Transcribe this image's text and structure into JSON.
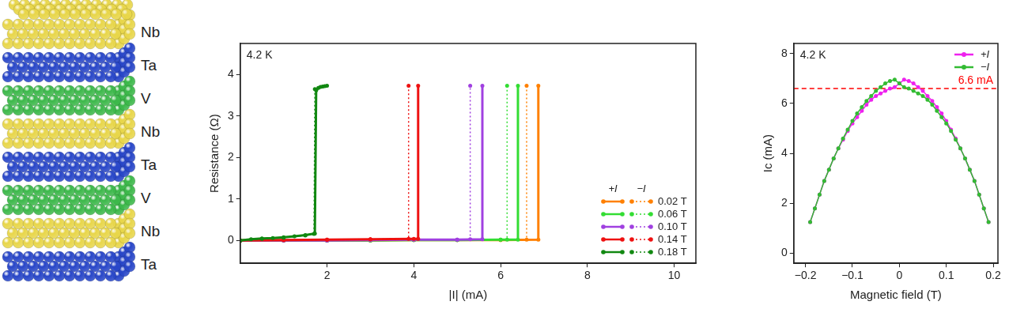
{
  "diagram": {
    "layers": [
      "Nb",
      "Ta",
      "V",
      "Nb",
      "Ta",
      "V",
      "Nb",
      "Ta"
    ],
    "colors": {
      "Nb": "#e8d64a",
      "Ta": "#2846c8",
      "V": "#3cb84a"
    }
  },
  "chart_data": [
    {
      "type": "line",
      "note": "4.2 K",
      "x_label": "|I| (mA)",
      "y_label": "Resistance (Ω)",
      "xlim": [
        0,
        10.5
      ],
      "xticks": [
        2,
        4,
        6,
        8,
        10
      ],
      "ylim": [
        -0.55,
        4.75
      ],
      "yticks": [
        0,
        1,
        2,
        3,
        4
      ],
      "grid": false,
      "legend": "lower right",
      "marker": "circle",
      "series": [
        {
          "name": "0.02 T",
          "group": "+I",
          "color": "#ff8000",
          "line_style": "solid",
          "x": [
            0,
            1,
            2,
            3,
            4,
            5,
            6,
            6.87,
            6.87
          ],
          "values": [
            0,
            0,
            0,
            0,
            0.01,
            0.01,
            0.01,
            0.02,
            3.73
          ]
        },
        {
          "name": "0.02 T",
          "group": "−I",
          "color": "#ff8000",
          "line_style": "dotted",
          "x": [
            0,
            1,
            2,
            3,
            4,
            5,
            6,
            6.6,
            6.6
          ],
          "values": [
            0,
            0,
            0,
            0,
            0.01,
            0.01,
            0.01,
            0.02,
            3.73
          ]
        },
        {
          "name": "0.06 T",
          "group": "+I",
          "color": "#33dd33",
          "line_style": "solid",
          "x": [
            0,
            1,
            2,
            3,
            4,
            5,
            6,
            6.4,
            6.4
          ],
          "values": [
            0,
            0,
            0,
            0,
            0.01,
            0.01,
            0.02,
            0.02,
            3.73
          ]
        },
        {
          "name": "0.06 T",
          "group": "−I",
          "color": "#33dd33",
          "line_style": "dotted",
          "x": [
            0,
            1,
            2,
            3,
            4,
            5,
            6,
            6.15,
            6.15
          ],
          "values": [
            0,
            0,
            0,
            0,
            0.01,
            0.01,
            0.02,
            0.02,
            3.73
          ]
        },
        {
          "name": "0.10 T",
          "group": "+I",
          "color": "#a040e0",
          "line_style": "solid",
          "x": [
            0,
            1,
            2,
            3,
            4,
            5,
            5.58,
            5.58
          ],
          "values": [
            0,
            0,
            0,
            0.01,
            0.02,
            0.02,
            0.03,
            3.73
          ]
        },
        {
          "name": "0.10 T",
          "group": "−I",
          "color": "#a040e0",
          "line_style": "dotted",
          "x": [
            0,
            1,
            2,
            3,
            4,
            5,
            5.3,
            5.3
          ],
          "values": [
            0,
            0,
            0,
            0.01,
            0.02,
            0.02,
            0.03,
            3.73
          ]
        },
        {
          "name": "0.14 T",
          "group": "+I",
          "color": "#ee1111",
          "line_style": "solid",
          "x": [
            0,
            1,
            2,
            3,
            4,
            4.1,
            4.1
          ],
          "values": [
            0,
            0.01,
            0.02,
            0.03,
            0.04,
            0.04,
            3.73
          ]
        },
        {
          "name": "0.14 T",
          "group": "−I",
          "color": "#ee1111",
          "line_style": "dotted",
          "x": [
            0,
            1,
            2,
            3,
            3.88,
            3.88
          ],
          "values": [
            0,
            0.01,
            0.02,
            0.03,
            0.04,
            3.73
          ]
        },
        {
          "name": "0.18 T",
          "group": "+I",
          "color": "#118811",
          "line_style": "solid",
          "x": [
            0,
            0.25,
            0.5,
            0.75,
            1,
            1.25,
            1.5,
            1.72,
            1.75,
            1.8,
            1.85,
            1.9,
            1.95,
            2.0
          ],
          "values": [
            0,
            0.03,
            0.05,
            0.06,
            0.08,
            0.1,
            0.13,
            0.17,
            3.62,
            3.68,
            3.7,
            3.71,
            3.72,
            3.73
          ]
        },
        {
          "name": "0.18 T",
          "group": "−I",
          "color": "#118811",
          "line_style": "dotted",
          "x": [
            0,
            0.5,
            1,
            1.5,
            1.7,
            1.72
          ],
          "values": [
            0,
            0.04,
            0.07,
            0.12,
            0.16,
            3.65
          ]
        }
      ]
    },
    {
      "type": "line",
      "note": "4.2 K",
      "x_label": "Magnetic field (T)",
      "y_label": "Ic (mA)",
      "xlim": [
        -0.225,
        0.21
      ],
      "xticks": [
        {
          "value": -0.2,
          "label": "−0.2"
        },
        {
          "value": -0.1,
          "label": "−0.1"
        },
        0,
        0.1,
        0.2
      ],
      "ylim": [
        -0.4,
        8.4
      ],
      "yticks": [
        0,
        2,
        4,
        6,
        8
      ],
      "grid": false,
      "legend": "upper right",
      "marker": "circle",
      "reference_line": {
        "value": 6.6,
        "label": "6.6 mA",
        "color": "#ff0000",
        "line_style": "dashed"
      },
      "series": [
        {
          "name": "+I",
          "color": "#ee22ee",
          "line_style": "solid",
          "x": [
            -0.19,
            -0.18,
            -0.17,
            -0.16,
            -0.15,
            -0.14,
            -0.13,
            -0.12,
            -0.11,
            -0.1,
            -0.09,
            -0.08,
            -0.07,
            -0.06,
            -0.05,
            -0.04,
            -0.03,
            -0.02,
            -0.01,
            0,
            0.01,
            0.02,
            0.03,
            0.04,
            0.05,
            0.06,
            0.07,
            0.08,
            0.09,
            0.1,
            0.11,
            0.12,
            0.13,
            0.14,
            0.15,
            0.16,
            0.17,
            0.18,
            0.19
          ],
          "values": [
            1.25,
            1.8,
            2.35,
            2.9,
            3.35,
            3.8,
            4.2,
            4.55,
            4.9,
            5.2,
            5.45,
            5.7,
            5.95,
            6.15,
            6.3,
            6.4,
            6.5,
            6.6,
            6.65,
            6.8,
            6.95,
            6.9,
            6.8,
            6.65,
            6.5,
            6.3,
            6.1,
            5.85,
            5.6,
            5.3,
            4.95,
            4.6,
            4.2,
            3.8,
            3.35,
            2.9,
            2.35,
            1.8,
            1.25
          ]
        },
        {
          "name": "−I",
          "color": "#33bb33",
          "line_style": "solid",
          "x": [
            -0.19,
            -0.18,
            -0.17,
            -0.16,
            -0.15,
            -0.14,
            -0.13,
            -0.12,
            -0.11,
            -0.1,
            -0.09,
            -0.08,
            -0.07,
            -0.06,
            -0.05,
            -0.04,
            -0.03,
            -0.02,
            -0.01,
            0,
            0.01,
            0.02,
            0.03,
            0.04,
            0.05,
            0.06,
            0.07,
            0.08,
            0.09,
            0.1,
            0.11,
            0.12,
            0.13,
            0.14,
            0.15,
            0.16,
            0.17,
            0.18,
            0.19
          ],
          "values": [
            1.25,
            1.8,
            2.35,
            2.9,
            3.35,
            3.8,
            4.2,
            4.6,
            4.95,
            5.3,
            5.6,
            5.85,
            6.1,
            6.3,
            6.5,
            6.65,
            6.8,
            6.9,
            6.95,
            6.8,
            6.65,
            6.6,
            6.5,
            6.4,
            6.3,
            6.15,
            5.95,
            5.7,
            5.45,
            5.2,
            4.9,
            4.55,
            4.2,
            3.8,
            3.35,
            2.9,
            2.35,
            1.8,
            1.25
          ]
        }
      ]
    }
  ]
}
